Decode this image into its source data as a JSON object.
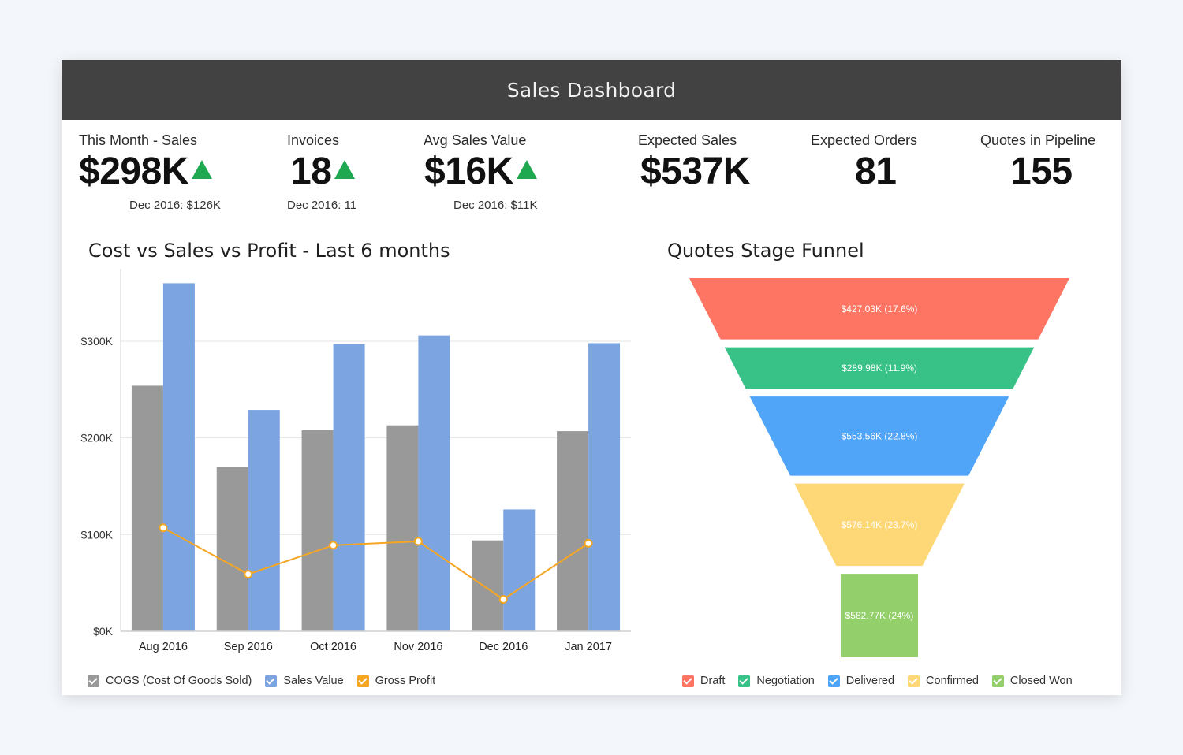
{
  "header": {
    "title": "Sales Dashboard"
  },
  "kpis": [
    {
      "label": "This Month - Sales",
      "value": "$298K",
      "trend": "up",
      "sub": "Dec 2016: $126K"
    },
    {
      "label": "Invoices",
      "value": "18",
      "trend": "up",
      "sub": "Dec 2016: 11"
    },
    {
      "label": "Avg Sales Value",
      "value": "$16K",
      "trend": "up",
      "sub": "Dec 2016: $11K"
    },
    {
      "label": "Expected Sales",
      "value": "$537K"
    },
    {
      "label": "Expected Orders",
      "value": "81"
    },
    {
      "label": "Quotes in Pipeline",
      "value": "155"
    }
  ],
  "colors": {
    "header_bg": "#424242",
    "trend_up": "#1ea84f",
    "cogs": "#999999",
    "sales": "#7ba4e0",
    "profit": "#f5a623",
    "draft": "#fe7563",
    "negotiation": "#38c287",
    "delivered": "#50a5f8",
    "confirmed": "#fed776",
    "closed_won": "#93cf6a"
  },
  "chart_data": [
    {
      "type": "bar",
      "title": "Cost vs Sales vs Profit - Last 6 months",
      "categories": [
        "Aug 2016",
        "Sep 2016",
        "Oct 2016",
        "Nov 2016",
        "Dec 2016",
        "Jan 2017"
      ],
      "series": [
        {
          "name": "COGS (Cost Of Goods Sold)",
          "kind": "bar",
          "values": [
            254000,
            170000,
            208000,
            213000,
            94000,
            207000
          ]
        },
        {
          "name": "Sales Value",
          "kind": "bar",
          "values": [
            360000,
            229000,
            297000,
            306000,
            126000,
            298000
          ]
        },
        {
          "name": "Gross Profit",
          "kind": "line",
          "values": [
            107000,
            59000,
            89000,
            93000,
            33000,
            91000
          ]
        }
      ],
      "ylim": [
        0,
        375000
      ],
      "yticks": [
        0,
        100000,
        200000,
        300000
      ],
      "ytick_labels": [
        "$0K",
        "$100K",
        "$200K",
        "$300K"
      ],
      "xlabel": "",
      "ylabel": "",
      "grid": true,
      "legend": "bottom-left"
    },
    {
      "type": "funnel",
      "title": "Quotes Stage Funnel",
      "stages": [
        {
          "name": "Draft",
          "value": 427030,
          "label": "$427.03K (17.6%)",
          "percent": 17.6
        },
        {
          "name": "Negotiation",
          "value": 289980,
          "label": "$289.98K (11.9%)",
          "percent": 11.9
        },
        {
          "name": "Delivered",
          "value": 553560,
          "label": "$553.56K (22.8%)",
          "percent": 22.8
        },
        {
          "name": "Confirmed",
          "value": 576140,
          "label": "$576.14K (23.7%)",
          "percent": 23.7
        },
        {
          "name": "Closed Won",
          "value": 582770,
          "label": "$582.77K (24%)",
          "percent": 24
        }
      ],
      "legend": "bottom"
    }
  ]
}
